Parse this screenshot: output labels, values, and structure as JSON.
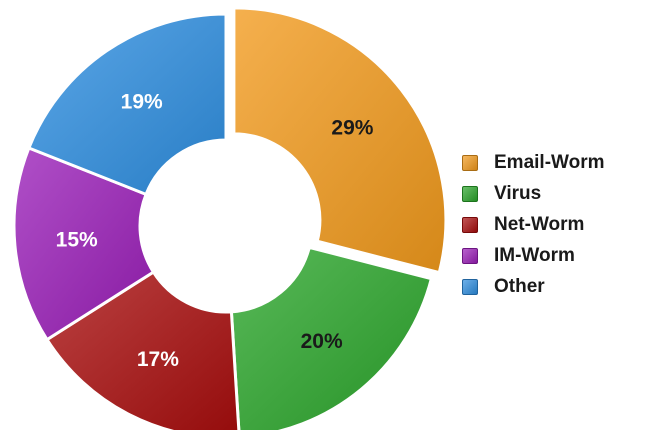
{
  "chart_data": {
    "type": "pie",
    "donut": true,
    "categories": [
      "Email-Worm",
      "Virus",
      "Net-Worm",
      "IM-Worm",
      "Other"
    ],
    "values": [
      29,
      20,
      17,
      15,
      19
    ],
    "value_labels": [
      "29%",
      "20%",
      "17%",
      "15%",
      "19%"
    ],
    "colors": [
      "#f29a1c",
      "#2aa52a",
      "#a80d0d",
      "#9a1eb8",
      "#2e8ee0"
    ],
    "label_colors": [
      "#1a1a1a",
      "#1a1a1a",
      "#ffffff",
      "#ffffff",
      "#ffffff"
    ],
    "exploded": [
      "Email-Worm"
    ],
    "legend_position": "right"
  }
}
